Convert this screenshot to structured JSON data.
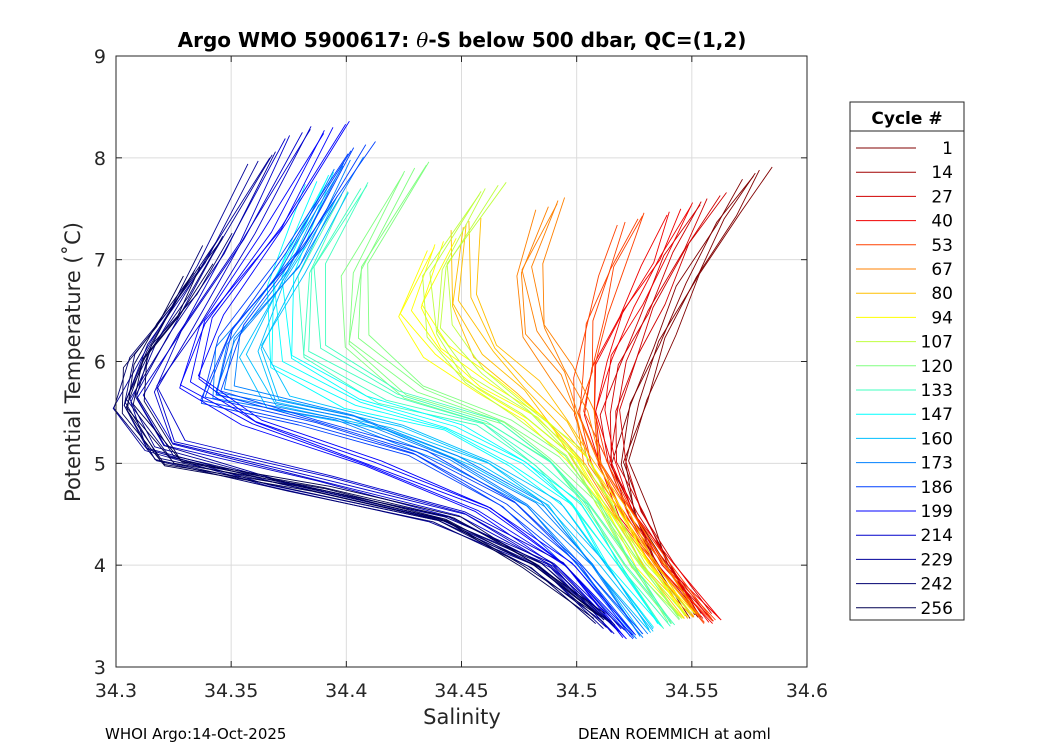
{
  "chart_data": {
    "type": "line",
    "title_parts": {
      "prefix": "Argo WMO 5900617: ",
      "theta": "θ",
      "suffix": "-S below 500 dbar,  QC=(1,2)"
    },
    "xlabel": "Salinity",
    "ylabel": "Potential Temperature (˚C)",
    "xlim": [
      34.3,
      34.6
    ],
    "ylim": [
      3,
      9
    ],
    "xticks": [
      34.3,
      34.35,
      34.4,
      34.45,
      34.5,
      34.55,
      34.6
    ],
    "xtick_labels": [
      "34.3",
      "34.35",
      "34.4",
      "34.45",
      "34.5",
      "34.55",
      "34.6"
    ],
    "yticks": [
      3,
      4,
      5,
      6,
      7,
      8,
      9
    ],
    "ytick_labels": [
      "3",
      "4",
      "5",
      "6",
      "7",
      "8",
      "9"
    ],
    "grid": true,
    "legend_title": "Cycle #",
    "legend_position": "right-outside",
    "series": [
      {
        "name": "1",
        "color": "#800000"
      },
      {
        "name": "14",
        "color": "#a00000"
      },
      {
        "name": "27",
        "color": "#d00000"
      },
      {
        "name": "40",
        "color": "#f00000"
      },
      {
        "name": "53",
        "color": "#ff4000"
      },
      {
        "name": "67",
        "color": "#ff8000"
      },
      {
        "name": "80",
        "color": "#ffbf00"
      },
      {
        "name": "94",
        "color": "#ffff00"
      },
      {
        "name": "107",
        "color": "#bfff40"
      },
      {
        "name": "120",
        "color": "#80ff80"
      },
      {
        "name": "133",
        "color": "#40ffbf"
      },
      {
        "name": "147",
        "color": "#00ffff"
      },
      {
        "name": "160",
        "color": "#00bfff"
      },
      {
        "name": "173",
        "color": "#0080ff"
      },
      {
        "name": "186",
        "color": "#0040ff"
      },
      {
        "name": "199",
        "color": "#0000ff"
      },
      {
        "name": "214",
        "color": "#0000cc"
      },
      {
        "name": "229",
        "color": "#000099"
      },
      {
        "name": "242",
        "color": "#000070"
      },
      {
        "name": "256",
        "color": "#000050"
      }
    ],
    "profiles": [
      {
        "series": 0,
        "color": "#800000",
        "s": [
          34.578,
          34.565,
          34.55,
          34.537,
          34.527,
          34.52,
          34.527,
          34.538,
          34.552
        ],
        "t": [
          7.85,
          7.4,
          6.8,
          6.2,
          5.6,
          5.0,
          4.5,
          4.0,
          3.5
        ]
      },
      {
        "series": 2,
        "color": "#d00000",
        "s": [
          34.558,
          34.545,
          34.532,
          34.522,
          34.516,
          34.516,
          34.526,
          34.54,
          34.555
        ],
        "t": [
          7.6,
          7.1,
          6.5,
          6.0,
          5.5,
          5.0,
          4.5,
          4.0,
          3.5
        ]
      },
      {
        "series": 3,
        "color": "#f00000",
        "s": [
          34.545,
          34.535,
          34.522,
          34.512,
          34.508,
          34.512,
          34.523,
          34.538,
          34.56
        ],
        "t": [
          7.5,
          7.0,
          6.5,
          6.0,
          5.5,
          5.0,
          4.5,
          4.0,
          3.45
        ]
      },
      {
        "series": 4,
        "color": "#ff4000",
        "s": [
          34.525,
          34.515,
          34.508,
          34.505,
          34.502,
          34.51,
          34.522,
          34.536,
          34.558
        ],
        "t": [
          7.4,
          6.9,
          6.4,
          5.9,
          5.5,
          5.0,
          4.5,
          4.0,
          3.45
        ]
      },
      {
        "series": 5,
        "color": "#ff8000",
        "s": [
          34.49,
          34.478,
          34.482,
          34.494,
          34.502,
          34.508,
          34.52,
          34.535,
          34.552
        ],
        "t": [
          7.55,
          6.9,
          6.3,
          5.9,
          5.5,
          5.0,
          4.5,
          4.0,
          3.5
        ]
      },
      {
        "series": 6,
        "color": "#ffbf00",
        "s": [
          34.452,
          34.45,
          34.462,
          34.478,
          34.492,
          34.505,
          34.518,
          34.532,
          34.55
        ],
        "t": [
          7.35,
          6.6,
          6.1,
          5.75,
          5.4,
          5.0,
          4.5,
          4.0,
          3.5
        ]
      },
      {
        "series": 7,
        "color": "#ffff00",
        "s": [
          34.44,
          34.428,
          34.44,
          34.46,
          34.482,
          34.5,
          34.515,
          34.53,
          34.548
        ],
        "t": [
          7.15,
          6.5,
          6.1,
          5.75,
          5.45,
          5.05,
          4.55,
          4.0,
          3.5
        ]
      },
      {
        "series": 8,
        "color": "#bfff40",
        "s": [
          34.462,
          34.44,
          34.44,
          34.455,
          34.478,
          34.498,
          34.512,
          34.528,
          34.546
        ],
        "t": [
          7.7,
          6.9,
          6.3,
          5.85,
          5.5,
          5.1,
          4.6,
          4.0,
          3.5
        ]
      },
      {
        "series": 9,
        "color": "#80ff80",
        "s": [
          34.43,
          34.405,
          34.403,
          34.43,
          34.468,
          34.49,
          34.508,
          34.524,
          34.542
        ],
        "t": [
          7.9,
          6.9,
          6.2,
          5.7,
          5.4,
          5.05,
          4.6,
          4.0,
          3.45
        ]
      },
      {
        "series": 10,
        "color": "#40ffbf",
        "s": [
          34.405,
          34.385,
          34.385,
          34.42,
          34.46,
          34.485,
          34.503,
          34.52,
          34.54
        ],
        "t": [
          7.7,
          6.9,
          6.1,
          5.65,
          5.4,
          5.0,
          4.6,
          4.0,
          3.4
        ]
      },
      {
        "series": 11,
        "color": "#00ffff",
        "s": [
          34.39,
          34.37,
          34.372,
          34.405,
          34.445,
          34.475,
          34.498,
          34.515,
          34.535
        ],
        "t": [
          7.8,
          6.8,
          6.0,
          5.6,
          5.35,
          5.0,
          4.6,
          4.0,
          3.4
        ]
      },
      {
        "series": 12,
        "color": "#00bfff",
        "s": [
          34.395,
          34.375,
          34.36,
          34.37,
          34.42,
          34.46,
          34.488,
          34.51,
          34.532
        ],
        "t": [
          7.6,
          6.8,
          6.1,
          5.6,
          5.35,
          5.0,
          4.6,
          4.0,
          3.35
        ]
      },
      {
        "series": 13,
        "color": "#0080ff",
        "s": [
          34.4,
          34.375,
          34.35,
          34.345,
          34.4,
          34.445,
          34.48,
          34.505,
          34.528
        ],
        "t": [
          7.95,
          6.9,
          6.2,
          5.7,
          5.45,
          5.05,
          4.6,
          4.0,
          3.3
        ]
      },
      {
        "series": 14,
        "color": "#0040ff",
        "s": [
          34.405,
          34.378,
          34.35,
          34.34,
          34.385,
          34.43,
          34.47,
          34.5,
          34.525
        ],
        "t": [
          8.1,
          7.1,
          6.3,
          5.65,
          5.4,
          5.1,
          4.6,
          4.0,
          3.3
        ]
      },
      {
        "series": 15,
        "color": "#0000ff",
        "s": [
          34.395,
          34.37,
          34.34,
          34.332,
          34.36,
          34.41,
          34.46,
          34.495,
          34.522
        ],
        "t": [
          8.3,
          7.3,
          6.4,
          5.8,
          5.4,
          5.0,
          4.55,
          4.0,
          3.3
        ]
      },
      {
        "series": 16,
        "color": "#0000cc",
        "s": [
          34.38,
          34.355,
          34.33,
          34.315,
          34.325,
          34.39,
          34.45,
          34.49,
          34.518
        ],
        "t": [
          8.25,
          7.2,
          6.3,
          5.7,
          5.2,
          4.85,
          4.5,
          4.0,
          3.35
        ]
      },
      {
        "series": 17,
        "color": "#000099",
        "s": [
          34.365,
          34.34,
          34.318,
          34.305,
          34.315,
          34.37,
          34.44,
          34.485,
          34.515
        ],
        "t": [
          8.0,
          7.0,
          6.2,
          5.6,
          5.15,
          4.8,
          4.45,
          4.0,
          3.4
        ]
      },
      {
        "series": 18,
        "color": "#000070",
        "s": [
          34.345,
          34.328,
          34.312,
          34.304,
          34.32,
          34.38,
          34.44,
          34.482,
          34.512
        ],
        "t": [
          7.2,
          6.6,
          6.1,
          5.6,
          5.05,
          4.75,
          4.45,
          4.0,
          3.45
        ]
      },
      {
        "series": 19,
        "color": "#000050",
        "s": [
          34.335,
          34.322,
          34.31,
          34.306,
          34.325,
          34.39,
          34.445,
          34.48,
          34.51
        ],
        "t": [
          6.9,
          6.4,
          6.0,
          5.55,
          5.0,
          4.75,
          4.45,
          4.0,
          3.5
        ]
      }
    ]
  },
  "footer": {
    "left": "WHOI Argo:14-Oct-2025",
    "right": "DEAN ROEMMICH at aoml"
  }
}
